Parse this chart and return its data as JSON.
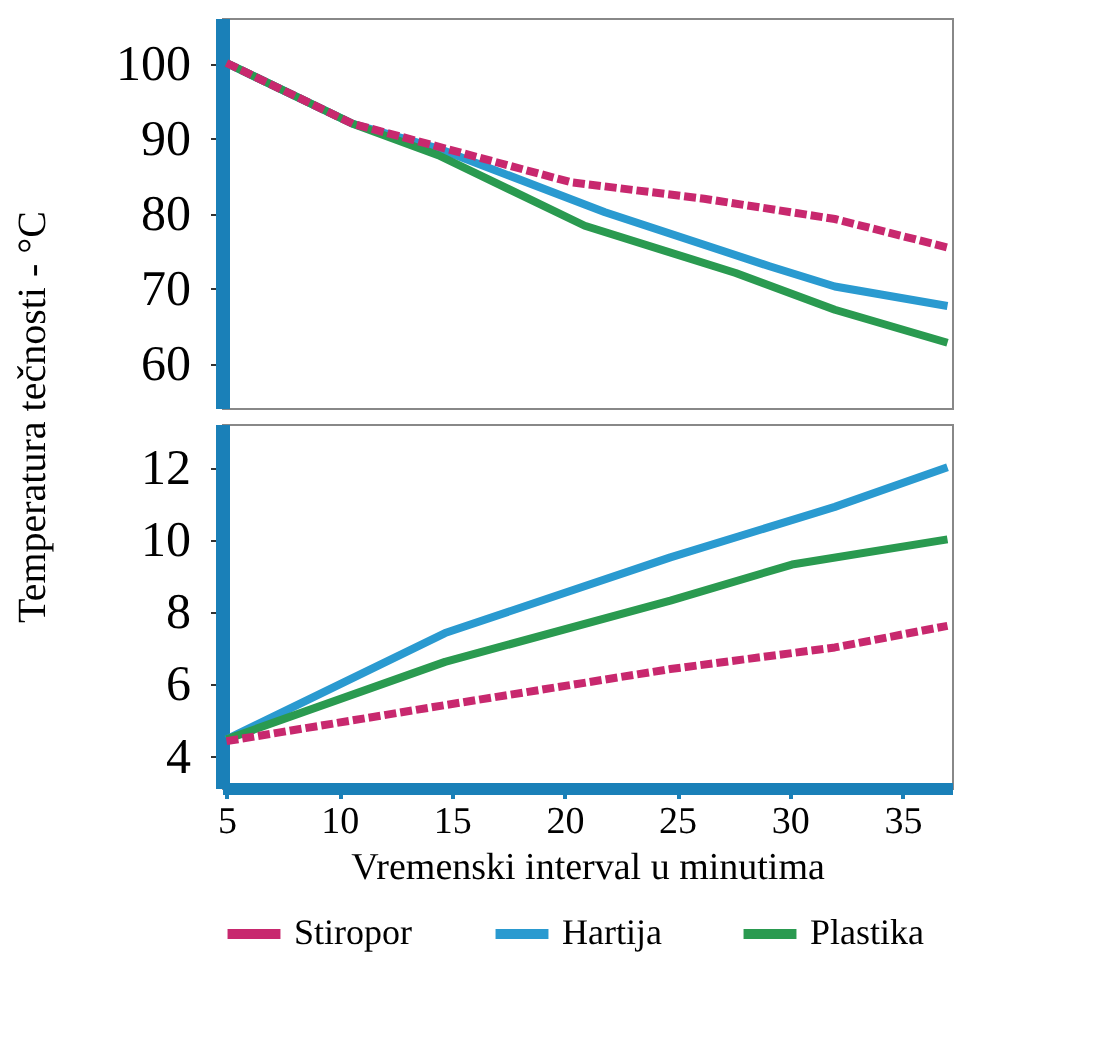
{
  "chart_data": [
    {
      "type": "line",
      "ylabel": "Temperatura tečnosti  - °C",
      "xlim": [
        4.8,
        37.2
      ],
      "ylim": [
        54,
        106
      ],
      "yticks": [
        60,
        70,
        80,
        90,
        100
      ],
      "tick_labels": "y",
      "legend": false,
      "grid": false,
      "series": [
        {
          "color": "#c8286e",
          "line_style": "dashed",
          "x": [
            5,
            10.6,
            20.3,
            26.2,
            32,
            37
          ],
          "values": [
            100,
            91.9,
            84.1,
            81.9,
            79.2,
            75.4
          ]
        },
        {
          "color": "#2a9ad0",
          "line_style": "solid",
          "x": [
            5,
            10.6,
            14.4,
            21.8,
            29.1,
            32,
            37
          ],
          "values": [
            100,
            91.9,
            88.6,
            80.1,
            72.9,
            70.2,
            67.6
          ]
        },
        {
          "color": "#2a9a50",
          "line_style": "solid",
          "x": [
            5,
            10.6,
            14.4,
            20.9,
            27.6,
            32,
            37
          ],
          "values": [
            100,
            91.9,
            87.7,
            78.3,
            72.0,
            67.1,
            62.7
          ]
        }
      ]
    },
    {
      "type": "line",
      "xlabel": "Vremenski interval u minutima",
      "xlim": [
        4.8,
        37.2
      ],
      "xticks": [
        5,
        10,
        15,
        20,
        25,
        30,
        35
      ],
      "ylim": [
        3.1,
        13.2
      ],
      "yticks": [
        4,
        6,
        8,
        10,
        12
      ],
      "legend": "bottom",
      "grid": false,
      "series": [
        {
          "name": "Stiropor",
          "color": "#c8286e",
          "line_style": "dashed",
          "x": [
            5,
            14.7,
            24.7,
            32,
            37
          ],
          "values": [
            4.4,
            5.4,
            6.4,
            7.0,
            7.6
          ]
        },
        {
          "name": "Hartija",
          "color": "#2a9ad0",
          "line_style": "solid",
          "x": [
            5,
            14.7,
            24.7,
            32,
            37
          ],
          "values": [
            4.45,
            7.4,
            9.5,
            10.9,
            12.0
          ]
        },
        {
          "name": "Plastika",
          "color": "#2a9a50",
          "line_style": "solid",
          "x": [
            5,
            14.7,
            24.7,
            30.1,
            37
          ],
          "values": [
            4.45,
            6.6,
            8.3,
            9.3,
            10.0
          ]
        }
      ]
    }
  ]
}
